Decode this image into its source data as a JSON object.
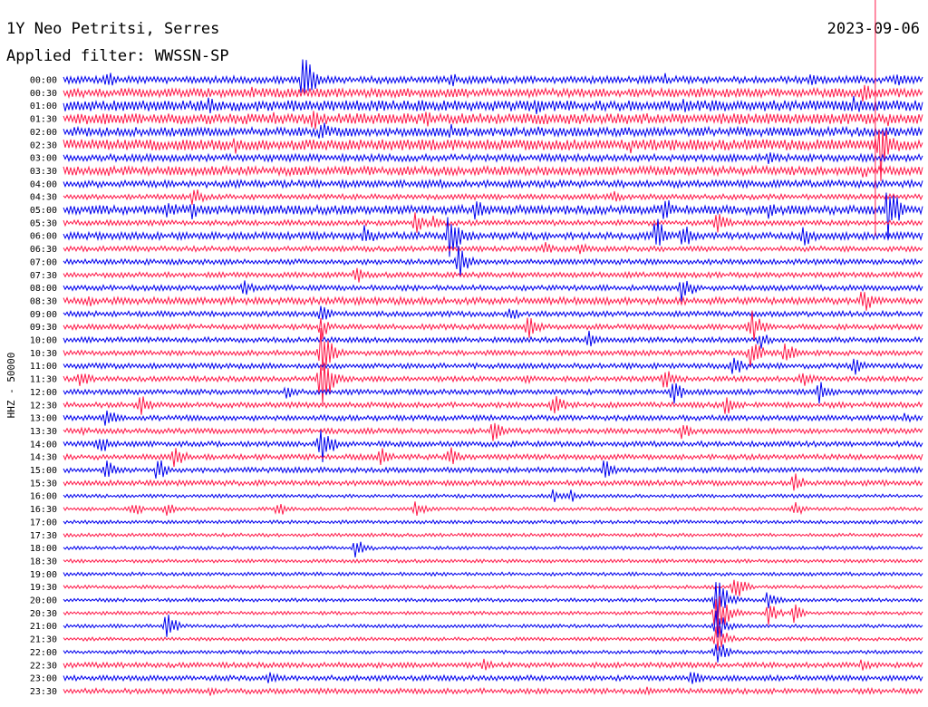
{
  "header": {
    "title": "1Y Neo Petritsi, Serres",
    "date": "2023-09-06",
    "filter": "Applied filter: WWSSN-SP"
  },
  "chart_data": {
    "type": "line",
    "title": "1Y Neo Petritsi, Serres",
    "ylabel": "HHZ - 50000",
    "series_colors": [
      "#0000ee",
      "#ff1a4a"
    ],
    "categories": [
      "00:00",
      "00:30",
      "01:00",
      "01:30",
      "02:00",
      "02:30",
      "03:00",
      "03:30",
      "04:00",
      "04:30",
      "05:00",
      "05:30",
      "06:00",
      "06:30",
      "07:00",
      "07:30",
      "08:00",
      "08:30",
      "09:00",
      "09:30",
      "10:00",
      "10:30",
      "11:00",
      "11:30",
      "12:00",
      "12:30",
      "13:00",
      "13:30",
      "14:00",
      "14:30",
      "15:00",
      "15:30",
      "16:00",
      "16:30",
      "17:00",
      "17:30",
      "18:00",
      "18:30",
      "19:00",
      "19:30",
      "20:00",
      "20:30",
      "21:00",
      "21:30",
      "22:00",
      "22:30",
      "23:00",
      "23:30"
    ],
    "noise": [
      4,
      5,
      6,
      6,
      5,
      6,
      4,
      5,
      4,
      3,
      5,
      3,
      4,
      3,
      3,
      3,
      3,
      4,
      3,
      3,
      3,
      3,
      3,
      3,
      3,
      3,
      3,
      3,
      3,
      3,
      3,
      3,
      2,
      2,
      2,
      2,
      2,
      2,
      2,
      2,
      2,
      2,
      2,
      2,
      2,
      3,
      3,
      3
    ],
    "events": [
      {
        "row": 0,
        "t": 0.05,
        "a": 12
      },
      {
        "row": 0,
        "t": 0.28,
        "a": 38
      },
      {
        "row": 0,
        "t": 0.45,
        "a": 10
      },
      {
        "row": 0,
        "t": 0.7,
        "a": 8
      },
      {
        "row": 0,
        "t": 0.87,
        "a": 10
      },
      {
        "row": 0,
        "t": 0.97,
        "a": 12
      },
      {
        "row": 1,
        "t": 0.22,
        "a": 8
      },
      {
        "row": 1,
        "t": 0.74,
        "a": 9
      },
      {
        "row": 1,
        "t": 0.93,
        "a": 14
      },
      {
        "row": 2,
        "t": 0.17,
        "a": 12
      },
      {
        "row": 2,
        "t": 0.42,
        "a": 14
      },
      {
        "row": 2,
        "t": 0.55,
        "a": 12
      },
      {
        "row": 2,
        "t": 0.72,
        "a": 10
      },
      {
        "row": 2,
        "t": 0.92,
        "a": 14
      },
      {
        "row": 3,
        "t": 0.07,
        "a": 8
      },
      {
        "row": 3,
        "t": 0.24,
        "a": 12
      },
      {
        "row": 3,
        "t": 0.29,
        "a": 16
      },
      {
        "row": 3,
        "t": 0.42,
        "a": 12
      },
      {
        "row": 3,
        "t": 0.96,
        "a": 10
      },
      {
        "row": 4,
        "t": 0.3,
        "a": 14
      },
      {
        "row": 4,
        "t": 0.45,
        "a": 10
      },
      {
        "row": 4,
        "t": 0.55,
        "a": 8
      },
      {
        "row": 5,
        "t": 0.2,
        "a": 12
      },
      {
        "row": 5,
        "t": 0.66,
        "a": 10
      },
      {
        "row": 5,
        "t": 0.95,
        "a": 46
      },
      {
        "row": 6,
        "t": 0.82,
        "a": 10
      },
      {
        "row": 7,
        "t": 0.05,
        "a": 8
      },
      {
        "row": 7,
        "t": 0.93,
        "a": 10
      },
      {
        "row": 8,
        "t": 0.44,
        "a": 8
      },
      {
        "row": 9,
        "t": 0.15,
        "a": 14
      },
      {
        "row": 9,
        "t": 0.64,
        "a": 10
      },
      {
        "row": 10,
        "t": 0.12,
        "a": 16
      },
      {
        "row": 10,
        "t": 0.15,
        "a": 14
      },
      {
        "row": 10,
        "t": 0.48,
        "a": 16
      },
      {
        "row": 10,
        "t": 0.7,
        "a": 18
      },
      {
        "row": 10,
        "t": 0.82,
        "a": 12
      },
      {
        "row": 10,
        "t": 0.96,
        "a": 36
      },
      {
        "row": 11,
        "t": 0.41,
        "a": 14
      },
      {
        "row": 11,
        "t": 0.43,
        "a": 10
      },
      {
        "row": 11,
        "t": 0.76,
        "a": 16
      },
      {
        "row": 12,
        "t": 0.35,
        "a": 14
      },
      {
        "row": 12,
        "t": 0.45,
        "a": 40
      },
      {
        "row": 12,
        "t": 0.69,
        "a": 22
      },
      {
        "row": 12,
        "t": 0.72,
        "a": 18
      },
      {
        "row": 12,
        "t": 0.86,
        "a": 18
      },
      {
        "row": 13,
        "t": 0.56,
        "a": 10
      },
      {
        "row": 13,
        "t": 0.6,
        "a": 12
      },
      {
        "row": 14,
        "t": 0.46,
        "a": 22
      },
      {
        "row": 15,
        "t": 0.34,
        "a": 12
      },
      {
        "row": 16,
        "t": 0.21,
        "a": 10
      },
      {
        "row": 16,
        "t": 0.72,
        "a": 18
      },
      {
        "row": 17,
        "t": 0.03,
        "a": 8
      },
      {
        "row": 17,
        "t": 0.93,
        "a": 16
      },
      {
        "row": 18,
        "t": 0.3,
        "a": 16
      },
      {
        "row": 18,
        "t": 0.52,
        "a": 10
      },
      {
        "row": 19,
        "t": 0.3,
        "a": 16
      },
      {
        "row": 19,
        "t": 0.54,
        "a": 16
      },
      {
        "row": 19,
        "t": 0.8,
        "a": 22
      },
      {
        "row": 20,
        "t": 0.61,
        "a": 12
      },
      {
        "row": 20,
        "t": 0.81,
        "a": 12
      },
      {
        "row": 21,
        "t": 0.3,
        "a": 30
      },
      {
        "row": 21,
        "t": 0.8,
        "a": 20
      },
      {
        "row": 21,
        "t": 0.84,
        "a": 14
      },
      {
        "row": 22,
        "t": 0.78,
        "a": 14
      },
      {
        "row": 22,
        "t": 0.92,
        "a": 12
      },
      {
        "row": 23,
        "t": 0.02,
        "a": 12
      },
      {
        "row": 23,
        "t": 0.3,
        "a": 40
      },
      {
        "row": 23,
        "t": 0.54,
        "a": 8
      },
      {
        "row": 23,
        "t": 0.7,
        "a": 14
      },
      {
        "row": 23,
        "t": 0.86,
        "a": 12
      },
      {
        "row": 24,
        "t": 0.26,
        "a": 10
      },
      {
        "row": 24,
        "t": 0.71,
        "a": 16
      },
      {
        "row": 24,
        "t": 0.88,
        "a": 14
      },
      {
        "row": 25,
        "t": 0.09,
        "a": 14
      },
      {
        "row": 25,
        "t": 0.57,
        "a": 16
      },
      {
        "row": 25,
        "t": 0.77,
        "a": 14
      },
      {
        "row": 26,
        "t": 0.05,
        "a": 14
      },
      {
        "row": 26,
        "t": 0.98,
        "a": 8
      },
      {
        "row": 27,
        "t": 0.02,
        "a": 8
      },
      {
        "row": 27,
        "t": 0.5,
        "a": 14
      },
      {
        "row": 27,
        "t": 0.72,
        "a": 12
      },
      {
        "row": 28,
        "t": 0.04,
        "a": 16
      },
      {
        "row": 28,
        "t": 0.3,
        "a": 28
      },
      {
        "row": 29,
        "t": 0.13,
        "a": 16
      },
      {
        "row": 29,
        "t": 0.37,
        "a": 12
      },
      {
        "row": 29,
        "t": 0.45,
        "a": 12
      },
      {
        "row": 30,
        "t": 0.05,
        "a": 12
      },
      {
        "row": 30,
        "t": 0.11,
        "a": 16
      },
      {
        "row": 30,
        "t": 0.63,
        "a": 14
      },
      {
        "row": 31,
        "t": 0.85,
        "a": 14
      },
      {
        "row": 32,
        "t": 0.57,
        "a": 8
      },
      {
        "row": 32,
        "t": 0.59,
        "a": 8
      },
      {
        "row": 33,
        "t": 0.08,
        "a": 10
      },
      {
        "row": 33,
        "t": 0.12,
        "a": 10
      },
      {
        "row": 33,
        "t": 0.25,
        "a": 10
      },
      {
        "row": 33,
        "t": 0.41,
        "a": 10
      },
      {
        "row": 33,
        "t": 0.85,
        "a": 10
      },
      {
        "row": 36,
        "t": 0.34,
        "a": 14
      },
      {
        "row": 39,
        "t": 0.78,
        "a": 18
      },
      {
        "row": 40,
        "t": 0.76,
        "a": 30
      },
      {
        "row": 40,
        "t": 0.82,
        "a": 12
      },
      {
        "row": 41,
        "t": 0.76,
        "a": 34
      },
      {
        "row": 41,
        "t": 0.82,
        "a": 14
      },
      {
        "row": 41,
        "t": 0.85,
        "a": 12
      },
      {
        "row": 42,
        "t": 0.12,
        "a": 16
      },
      {
        "row": 42,
        "t": 0.76,
        "a": 20
      },
      {
        "row": 43,
        "t": 0.76,
        "a": 20
      },
      {
        "row": 44,
        "t": 0.76,
        "a": 18
      },
      {
        "row": 45,
        "t": 0.49,
        "a": 8
      },
      {
        "row": 45,
        "t": 0.93,
        "a": 10
      },
      {
        "row": 46,
        "t": 0.24,
        "a": 10
      },
      {
        "row": 46,
        "t": 0.73,
        "a": 12
      },
      {
        "row": 47,
        "t": 0.17,
        "a": 6
      },
      {
        "row": 47,
        "t": 0.68,
        "a": 6
      }
    ],
    "markers": [
      {
        "label": "vertical line at 00:00 trace end",
        "t": 0.945,
        "row_from": 0,
        "row_to": 12
      }
    ]
  }
}
